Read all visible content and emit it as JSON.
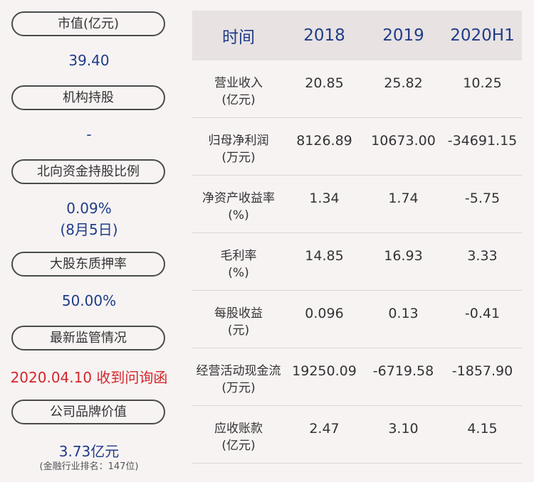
{
  "left": {
    "items": [
      {
        "label": "市值(亿元)",
        "value": "39.40"
      },
      {
        "label": "机构持股",
        "value": "-"
      },
      {
        "label": "北向资金持股比例",
        "value": "0.09%",
        "value2": "(8月5日)"
      },
      {
        "label": "大股东质押率",
        "value": "50.00%"
      },
      {
        "label": "最新监管情况",
        "value": "2020.04.10 收到问询函"
      },
      {
        "label": "公司品牌价值",
        "value": "3.73亿元",
        "note": "(金融行业排名：147位)"
      }
    ]
  },
  "table": {
    "headers": [
      "时间",
      "2018",
      "2019",
      "2020H1"
    ],
    "rows": [
      {
        "label": "营业收入",
        "unit": "(亿元)",
        "values": [
          "20.85",
          "25.82",
          "10.25"
        ]
      },
      {
        "label": "归母净利润",
        "unit": "(万元)",
        "values": [
          "8126.89",
          "10673.00",
          "-34691.15"
        ]
      },
      {
        "label": "净资产收益率",
        "unit": "(%)",
        "values": [
          "1.34",
          "1.74",
          "-5.75"
        ]
      },
      {
        "label": "毛利率",
        "unit": "(%)",
        "values": [
          "14.85",
          "16.93",
          "3.33"
        ]
      },
      {
        "label": "每股收益",
        "unit": "(元)",
        "values": [
          "0.096",
          "0.13",
          "-0.41"
        ]
      },
      {
        "label": "经营活动现金流",
        "unit": "(万元)",
        "values": [
          "19250.09",
          "-6719.58",
          "-1857.90"
        ]
      },
      {
        "label": "应收账款",
        "unit": "(亿元)",
        "values": [
          "2.47",
          "3.10",
          "4.15"
        ]
      }
    ]
  }
}
